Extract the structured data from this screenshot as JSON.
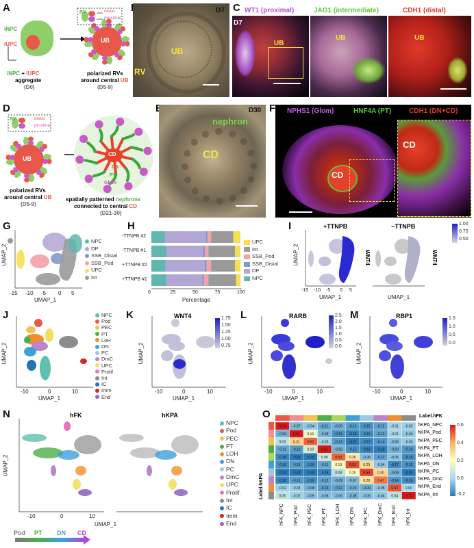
{
  "panels": {
    "A": {
      "label": "A",
      "inpc": "iNPC",
      "iupc": "iUPC",
      "rv": "RV",
      "distal": "distal",
      "proximal": "proximal",
      "ub": "UB",
      "cap1a": "iNPC",
      "cap1b": " + ",
      "cap1c": "iUPC",
      "cap2": "aggregate",
      "cap3": "(D0)",
      "cap4": "polarized RVs",
      "cap5a": "around central ",
      "cap5b": "UB",
      "cap6": "(D5-9)"
    },
    "B": {
      "label": "B",
      "day": "D7",
      "ub": "UB",
      "rv": "RV"
    },
    "C": {
      "label": "C",
      "day": "D7",
      "t1": "WT1 (proximal)",
      "t2": "JAG1 (intermediate)",
      "t3": "CDH1 (distal)",
      "ub": "UB"
    },
    "D": {
      "label": "D",
      "rv": "RV",
      "distal": "distal",
      "proximal": "proximal",
      "ub": "UB",
      "cd": "CD",
      "dn": "DN",
      "pt": "PT",
      "glom": "Glom",
      "cap1": "polarized RVs",
      "cap2a": "around central ",
      "cap2b": "UB",
      "cap3": "(D5-9)",
      "cap4": "spatially patterned ",
      "cap4b": "nephrons",
      "cap5a": "connected to central ",
      "cap5b": "CD",
      "cap6": "(D21-30)"
    },
    "E": {
      "label": "E",
      "day": "D30",
      "nephron": "nephron",
      "cd": "CD"
    },
    "F": {
      "label": "F",
      "t1": "NPHS1 (Glom)",
      "t2": "HNF4A (PT)",
      "t3": "CDH1 (DN+CD)",
      "cd": "CD"
    },
    "G": {
      "label": "G",
      "xlabel": "UMAP_1",
      "ylabel": "UMAP_2",
      "xticks": [
        "-15",
        "-10",
        "-5",
        "0",
        "5"
      ],
      "yticks": [
        "10",
        "5",
        "0",
        "-5",
        "-10"
      ]
    },
    "H": {
      "label": "H",
      "xlabel": "Percentage",
      "xticks": [
        "0",
        "25",
        "50",
        "75",
        "100"
      ]
    },
    "I": {
      "label": "I",
      "t1": "+TTNPB",
      "t2": "−TTNPB",
      "gene": "WNT4",
      "xlabel": "UMAP_1",
      "ylabel": "UMAP_2",
      "xticks": [
        "-15",
        "-10",
        "-5",
        "0",
        "5"
      ],
      "yticks": [
        "10",
        "5",
        "0",
        "-5",
        "-10"
      ],
      "scale": [
        "1.00",
        "0.75",
        "0.50"
      ]
    },
    "J": {
      "label": "J",
      "xlabel": "UMAP_1",
      "ylabel": "UMAP_2",
      "xticks": [
        "-10",
        "0",
        "10"
      ],
      "yticks": [
        "10",
        "0",
        "-10"
      ]
    },
    "K": {
      "label": "K",
      "gene": "WNT4",
      "xlabel": "UMAP_1",
      "ylabel": "UMAP_2",
      "xticks": [
        "-10",
        "0",
        "10"
      ],
      "yticks": [
        "10",
        "0",
        "-10"
      ],
      "scale": [
        "1.75",
        "1.50",
        "1.25",
        "1.00",
        "0.75"
      ]
    },
    "L": {
      "label": "L",
      "gene": "RARB",
      "xlabel": "UMAP_1",
      "ylabel": "UMAP_2",
      "xticks": [
        "-10",
        "0",
        "10"
      ],
      "yticks": [
        "10",
        "0",
        "-10"
      ],
      "scale": [
        "2.5",
        "2.0",
        "1.5",
        "1.0",
        "0.5",
        "0.0"
      ]
    },
    "M": {
      "label": "M",
      "gene": "RBP1",
      "xlabel": "UMAP_1",
      "ylabel": "UMAP_2",
      "xticks": [
        "-10",
        "0",
        "10"
      ],
      "yticks": [
        "10",
        "0",
        "-10"
      ],
      "scale": [
        "1.5",
        "1.0",
        "0.5",
        "0.0"
      ]
    },
    "N": {
      "label": "N",
      "t1": "hFK",
      "t2": "hKPA",
      "xlabel": "UMAP_1",
      "ylabel": "UMAP_2",
      "xticks": [
        "-10",
        "0",
        "10"
      ],
      "yticks": [
        "10",
        "0",
        "-10"
      ],
      "arrow": [
        "Pod",
        "PT",
        "DN",
        "CD"
      ]
    },
    "O": {
      "label": "O",
      "toplabel": "Label.hFK",
      "leftlabel": "Label.hKPA",
      "scale": [
        "0.6",
        "0.4",
        "0.2",
        "0.0",
        "-0.2"
      ]
    }
  },
  "legends": {
    "G": [
      {
        "name": "NPC",
        "color": "#5fb7b0"
      },
      {
        "name": "DP",
        "color": "#b2a6d4"
      },
      {
        "name": "SSB_Distal",
        "color": "#7e9bc7"
      },
      {
        "name": "SSB_Pod",
        "color": "#f3a0a6"
      },
      {
        "name": "UPC",
        "color": "#f6e04b"
      },
      {
        "name": "Int",
        "color": "#9a9a9a"
      }
    ],
    "H": [
      {
        "name": "UPC",
        "color": "#f6e04b"
      },
      {
        "name": "Int",
        "color": "#9a9a9a"
      },
      {
        "name": "SSB_Pod",
        "color": "#f3a0a6"
      },
      {
        "name": "SSB_Distal",
        "color": "#7e9bc7"
      },
      {
        "name": "DP",
        "color": "#b2a6d4"
      },
      {
        "name": "NPC",
        "color": "#5fb7b0"
      }
    ],
    "J": [
      {
        "name": "NPC",
        "color": "#5fc0b2"
      },
      {
        "name": "Pod",
        "color": "#e8574a"
      },
      {
        "name": "PEC",
        "color": "#f2c14e"
      },
      {
        "name": "PT",
        "color": "#4daf4a"
      },
      {
        "name": "LoH",
        "color": "#f28e2b"
      },
      {
        "name": "DN",
        "color": "#3fa0d8"
      },
      {
        "name": "PC",
        "color": "#9ecae1"
      },
      {
        "name": "DmC",
        "color": "#b987c9"
      },
      {
        "name": "UPC",
        "color": "#f1e05a"
      },
      {
        "name": "Prolif",
        "color": "#e377c2"
      },
      {
        "name": "Int",
        "color": "#8c8c8c"
      },
      {
        "name": "IC",
        "color": "#1f77b4"
      },
      {
        "name": "Imm",
        "color": "#d62728"
      },
      {
        "name": "End",
        "color": "#9467bd"
      }
    ],
    "N": [
      {
        "name": "NPC",
        "color": "#5fc0b2"
      },
      {
        "name": "Pod",
        "color": "#e8574a"
      },
      {
        "name": "PEC",
        "color": "#f2c14e"
      },
      {
        "name": "PT",
        "color": "#4daf4a"
      },
      {
        "name": "LOH",
        "color": "#f28e2b"
      },
      {
        "name": "DN",
        "color": "#3fa0d8"
      },
      {
        "name": "PC",
        "color": "#9ecae1"
      },
      {
        "name": "DmC",
        "color": "#b987c9"
      },
      {
        "name": "UPC",
        "color": "#f1e05a"
      },
      {
        "name": "Prolif.",
        "color": "#e377c2"
      },
      {
        "name": "Int",
        "color": "#8c8c8c"
      },
      {
        "name": "IC",
        "color": "#1f77b4"
      },
      {
        "name": "Imm",
        "color": "#d62728"
      },
      {
        "name": "End",
        "color": "#9467bd"
      }
    ]
  },
  "chart_data": [
    {
      "type": "bar",
      "panel": "H",
      "orientation": "horizontal",
      "stacked": true,
      "categories": [
        "-TTNPB #2",
        "-TTNPB #1",
        "+TTNPB #2",
        "+TTNPB #1"
      ],
      "series": [
        {
          "name": "NPC",
          "values": [
            15,
            17,
            16,
            17
          ]
        },
        {
          "name": "DP",
          "values": [
            46,
            41,
            44,
            40
          ]
        },
        {
          "name": "SSB_Distal",
          "values": [
            2,
            2,
            2,
            2
          ]
        },
        {
          "name": "SSB_Pod",
          "values": [
            4,
            4,
            5,
            5
          ]
        },
        {
          "name": "Int",
          "values": [
            25,
            30,
            27,
            31
          ]
        },
        {
          "name": "UPC",
          "values": [
            8,
            6,
            6,
            5
          ]
        }
      ],
      "xlabel": "Percentage",
      "xlim": [
        0,
        100
      ]
    },
    {
      "type": "heatmap",
      "panel": "O",
      "columns": [
        "hFK_NPC",
        "hFK_Pod",
        "hFK_PEC",
        "hFK_PT",
        "hFK_LOH",
        "hFK_DN",
        "hFK_PC",
        "hFK_DmC",
        "hFK_End",
        "hFK_Int"
      ],
      "rows": [
        "hKPA_NPC",
        "hKPA_Pod",
        "hKPA_PEC",
        "hKPA_PT",
        "hKPA_LOH",
        "hKPA_DN",
        "hKPA_PC",
        "hKPA_DmC",
        "hKPA_End",
        "hKPA_Int"
      ],
      "values": [
        [
          0.74,
          -0.07,
          -0.04,
          -0.11,
          -0.09,
          -0.13,
          -0.15,
          -0.12,
          -0.01,
          -0.02
        ],
        [
          -0.09,
          0.63,
          0.16,
          -0.08,
          -0.15,
          -0.18,
          -0.16,
          -0.12,
          -0.01,
          -0.04
        ],
        [
          0.03,
          0.31,
          0.5,
          -0.02,
          -0.13,
          -0.22,
          -0.17,
          -0.14,
          -0.06,
          -0.03
        ],
        [
          -0.11,
          -0.13,
          0.1,
          0.61,
          -0.08,
          -0.15,
          -0.18,
          -0.19,
          -0.09,
          -0.14
        ],
        [
          -0.18,
          -0.2,
          -0.2,
          0.08,
          0.5,
          0.26,
          -0.06,
          -0.12,
          -0.05,
          -0.16
        ],
        [
          -0.16,
          -0.13,
          -0.16,
          -0.11,
          0.19,
          0.53,
          0.29,
          -0.04,
          -0.17,
          -0.15
        ],
        [
          -0.24,
          -0.23,
          -0.24,
          -0.18,
          0.03,
          0.2,
          0.54,
          0.3,
          -0.09,
          -0.2
        ],
        [
          -0.18,
          -0.13,
          -0.16,
          -0.12,
          -0.09,
          -0.07,
          0.28,
          0.47,
          -0.14,
          -0.16
        ],
        [
          -0.02,
          -0.03,
          -0.08,
          -0.13,
          -0.12,
          -0.1,
          -0.09,
          -0.05,
          0.52,
          0.0
        ],
        [
          0.05,
          -0.02,
          -0.05,
          -0.06,
          -0.06,
          -0.08,
          -0.05,
          -0.04,
          0.04,
          0.71
        ]
      ],
      "colorscale": {
        "min": -0.2,
        "max": 0.6
      }
    }
  ]
}
